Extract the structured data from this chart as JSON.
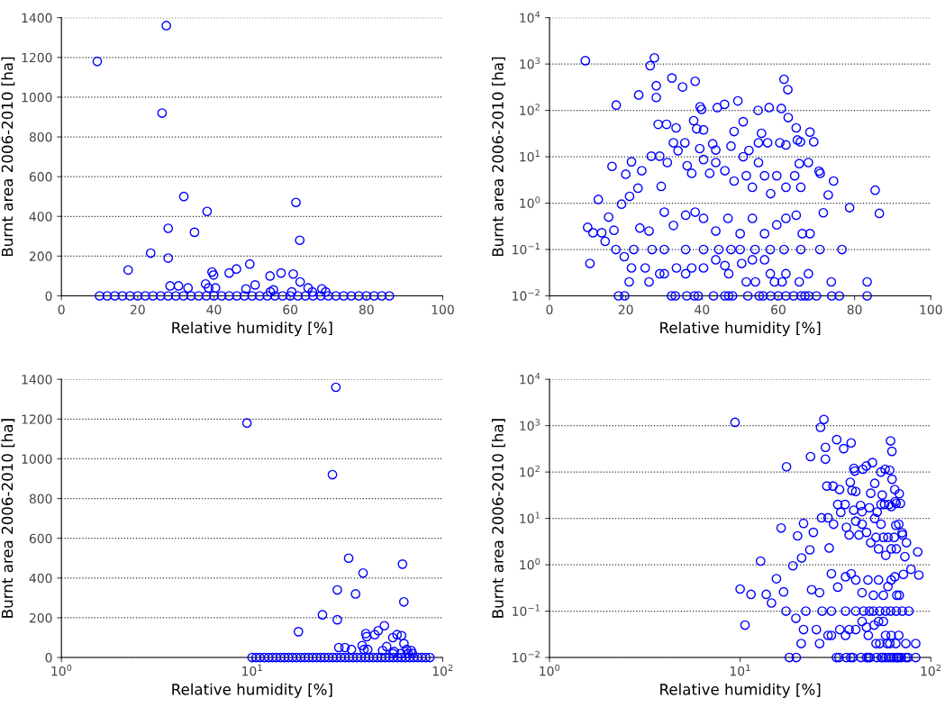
{
  "chart_data": [
    {
      "type": "scatter",
      "xlabel": "Relative humidity [%]",
      "ylabel": "Burnt area 2006-2010 [ha]",
      "marker": "circle",
      "grid": "y",
      "xlim": [
        0,
        100
      ],
      "xticks": [
        0,
        20,
        40,
        60,
        80,
        100
      ],
      "ylim": [
        0,
        1400
      ],
      "yticks": [
        0,
        200,
        400,
        600,
        800,
        1000,
        1200,
        1400
      ],
      "series": [
        {
          "color": "#0000ff",
          "x": [
            9.4,
            27.5,
            26.4,
            32.1,
            38.2,
            34.9,
            28,
            28,
            23.4,
            17.5,
            61.5,
            62.5,
            49.4,
            45.9,
            44,
            57.6,
            60.8,
            54.7,
            39.5,
            39.9,
            28.5,
            30.7,
            33.2,
            37.8,
            38.6,
            50.8,
            55.6,
            62.6,
            64.7,
            68.3,
            69.3,
            65.8,
            48.4,
            40.4,
            54.8,
            60.4,
            10,
            12,
            14,
            16,
            18,
            20,
            22,
            24,
            26,
            28,
            30,
            32,
            34,
            36,
            38,
            40,
            42,
            44,
            46,
            48,
            50,
            52,
            54,
            56,
            58,
            60,
            62,
            64,
            66,
            68,
            70,
            72,
            74,
            76,
            78,
            80,
            82,
            84,
            86
          ],
          "values": [
            1180,
            1360,
            920,
            500,
            425,
            320,
            340,
            190,
            215,
            130,
            470,
            280,
            160,
            135,
            115,
            115,
            110,
            100,
            120,
            105,
            50,
            50,
            40,
            60,
            40,
            55,
            30,
            70,
            40,
            35,
            20,
            20,
            35,
            40,
            20,
            20,
            0,
            0,
            0,
            0,
            0,
            0,
            0,
            0,
            0,
            0,
            0,
            0,
            0,
            0,
            0,
            0,
            0,
            0,
            0,
            0,
            0,
            0,
            0,
            0,
            0,
            0,
            0,
            0,
            0,
            0,
            0,
            0,
            0,
            0,
            0,
            0,
            0,
            0,
            0
          ]
        }
      ]
    },
    {
      "type": "scatter",
      "xlabel": "Relative humidity [%]",
      "ylabel": "Burnt area 2006-2010 [ha]",
      "marker": "circle",
      "grid": "y",
      "log": "y",
      "xlim": [
        0,
        100
      ],
      "xticks": [
        0,
        20,
        40,
        60,
        80,
        100
      ],
      "ylim": [
        0.01,
        10000
      ],
      "yticks": [
        {
          "value": 0.01,
          "label": "10$^{−2}$"
        },
        {
          "value": 0.1,
          "label": "10$^{−1}$"
        },
        {
          "value": 1,
          "label": "10$^{0}$"
        },
        {
          "value": 10,
          "label": "10$^{1}$"
        },
        {
          "value": 100,
          "label": "10$^{2}$"
        },
        {
          "value": 1000,
          "label": "10$^{3}$"
        },
        {
          "value": 10000,
          "label": "10$^{4}$"
        }
      ],
      "series": [
        {
          "color": "#0000ff",
          "x": [
            9.4,
            27.5,
            26.4,
            32.1,
            38.2,
            34.9,
            28,
            28,
            23.4,
            17.5,
            61.5,
            62.5,
            49.4,
            45.9,
            44,
            57.6,
            60.8,
            54.7,
            39.5,
            39.9,
            28.5,
            30.7,
            33.2,
            37.8,
            38.6,
            50.8,
            55.6,
            62.6,
            64.7,
            68.3,
            69.3,
            65.8,
            48.4,
            32.5,
            35.5,
            39.4,
            42.8,
            26.7,
            28.9,
            16.4,
            21.5,
            20,
            24.2,
            23.2,
            74.5,
            70.7,
            85.4,
            86.5,
            78.7,
            71.8,
            73.1,
            12.8,
            18.9,
            21,
            15.5,
            10,
            11.4,
            13.7,
            14.6,
            10.6,
            16.9,
            19.6,
            21.5,
            20.9,
            26.1,
            25.1,
            19.7,
            18.1,
            29.3,
            30.9,
            33.7,
            36.1,
            37.3,
            40.4,
            42,
            43.6,
            46,
            48.4,
            50.8,
            51.6,
            53.2,
            54.8,
            56.4,
            58,
            59.6,
            62,
            64.3,
            65.9,
            67.9,
            71,
            65.5,
            30.1,
            32.5,
            35.7,
            38.2,
            40.4,
            43.6,
            46.8,
            50,
            53.2,
            56.4,
            59.6,
            62,
            64.7,
            66.3,
            68.3,
            26.1,
            23.7,
            17.4,
            22.1,
            26.9,
            30.1,
            35.7,
            40.4,
            44.4,
            47.6,
            50,
            53.9,
            57.9,
            61.5,
            65.9,
            70.9,
            76.7,
            33.3,
            37.3,
            40.4,
            43.6,
            46,
            50.4,
            53.2,
            56.4,
            47,
            51.6,
            54,
            59,
            61,
            65.5,
            67.9,
            73.9,
            83.3,
            28.9,
            35.7,
            30.1,
            57.9,
            62,
            32,
            33,
            36,
            38,
            39,
            43,
            46,
            47,
            48,
            52,
            55,
            56,
            58,
            60,
            62,
            64,
            66,
            67,
            68,
            70,
            74,
            76,
            83.3,
            40.4,
            47.6,
            52.3,
            54.8,
            57.2,
            60.4,
            62,
            65,
            43.6
          ],
          "values": [
            1180,
            1360,
            920,
            500,
            425,
            320,
            340,
            190,
            215,
            130,
            470,
            280,
            160,
            135,
            115,
            115,
            110,
            100,
            120,
            105,
            50,
            50,
            42,
            60,
            40,
            57,
            32,
            70,
            42,
            34,
            21,
            21,
            35,
            20,
            20,
            15,
            19,
            10.3,
            10.3,
            6.2,
            7.8,
            4.2,
            5,
            2.1,
            3,
            4.9,
            1.9,
            0.6,
            0.8,
            0.62,
            1.5,
            1.2,
            0.95,
            1.4,
            0.5,
            0.3,
            0.23,
            0.23,
            0.15,
            0.05,
            0.26,
            0.07,
            0.04,
            0.02,
            0.02,
            0.04,
            0.01,
            0.01,
            2.3,
            7.5,
            13.5,
            6.4,
            4.4,
            8.7,
            4.4,
            7.5,
            5,
            3,
            10,
            3.9,
            2.2,
            7.5,
            3.9,
            1.6,
            3.9,
            2.2,
            3.9,
            2.2,
            7.5,
            4.4,
            7.1,
            0.64,
            0.33,
            0.55,
            0.64,
            0.47,
            0.25,
            0.47,
            0.22,
            0.47,
            0.22,
            0.34,
            0.47,
            0.55,
            0.22,
            0.22,
            0.25,
            0.29,
            0.1,
            0.1,
            0.1,
            0.1,
            0.1,
            0.1,
            0.1,
            0.1,
            0.1,
            0.1,
            0.1,
            0.1,
            0.1,
            0.1,
            0.1,
            0.04,
            0.04,
            0.04,
            0.06,
            0.045,
            0.05,
            0.06,
            0.06,
            0.03,
            0.02,
            0.02,
            0.02,
            0.02,
            0.02,
            0.03,
            0.02,
            0.02,
            0.03,
            0.03,
            0.03,
            0.03,
            0.03,
            0.01,
            0.01,
            0.01,
            0.01,
            0.01,
            0.01,
            0.01,
            0.01,
            0.01,
            0.01,
            0.01,
            0.01,
            0.01,
            0.01,
            0.01,
            0.01,
            0.01,
            0.01,
            0.01,
            0.01,
            0.01,
            0.01,
            0.01,
            38,
            17,
            13.7,
            20,
            20,
            20,
            18,
            23,
            14
          ]
        }
      ]
    },
    {
      "type": "scatter",
      "xlabel": "Relative humidity [%]",
      "ylabel": "Burnt area 2006-2010 [ha]",
      "marker": "circle",
      "grid": "y",
      "log": "x",
      "xlim": [
        1,
        100
      ],
      "xticks": [
        {
          "value": 1,
          "label": "10$^{0}$"
        },
        {
          "value": 10,
          "label": "10$^{1}$"
        },
        {
          "value": 100,
          "label": "10$^{2}$"
        }
      ],
      "ylim": [
        0,
        1400
      ],
      "yticks": [
        0,
        200,
        400,
        600,
        800,
        1000,
        1200,
        1400
      ],
      "series": [
        {
          "color": "#0000ff",
          "x": [
            9.4,
            27.5,
            26.4,
            32.1,
            38.2,
            34.9,
            28,
            28,
            23.4,
            17.5,
            61.5,
            62.5,
            49.4,
            45.9,
            44,
            57.6,
            60.8,
            54.7,
            39.5,
            39.9,
            28.5,
            30.7,
            33.2,
            37.8,
            38.6,
            50.8,
            55.6,
            62.6,
            64.7,
            68.3,
            69.3,
            65.8,
            48.4,
            40.4,
            54.8,
            60.4,
            10,
            10.5,
            11,
            11.6,
            12.2,
            12.8,
            13.4,
            14.1,
            14.8,
            15.5,
            16.3,
            17.1,
            18,
            18.9,
            19.8,
            20.8,
            21.8,
            22.9,
            24,
            25.2,
            26.5,
            27.8,
            29.2,
            30.7,
            32.2,
            33.8,
            35.5,
            37.3,
            39.2,
            41.1,
            43.2,
            45.4,
            47.6,
            50,
            52.5,
            55.1,
            57.9,
            60.8,
            63.8,
            67,
            70.4,
            73.9,
            77.6,
            81.5,
            85.6
          ],
          "values": [
            1180,
            1360,
            920,
            500,
            425,
            320,
            340,
            190,
            215,
            130,
            470,
            280,
            160,
            135,
            115,
            115,
            110,
            100,
            120,
            105,
            50,
            50,
            40,
            60,
            40,
            55,
            30,
            70,
            40,
            35,
            20,
            20,
            35,
            40,
            20,
            20,
            0,
            0,
            0,
            0,
            0,
            0,
            0,
            0,
            0,
            0,
            0,
            0,
            0,
            0,
            0,
            0,
            0,
            0,
            0,
            0,
            0,
            0,
            0,
            0,
            0,
            0,
            0,
            0,
            0,
            0,
            0,
            0,
            0,
            0,
            0,
            0,
            0,
            0,
            0,
            0,
            0,
            0,
            0,
            0,
            0
          ]
        }
      ]
    },
    {
      "type": "scatter",
      "xlabel": "Relative humidity [%]",
      "ylabel": "Burnt area 2006-2010 [ha]",
      "marker": "circle",
      "grid": "y",
      "log": "xy",
      "xlim": [
        1,
        100
      ],
      "xticks": [
        {
          "value": 1,
          "label": "10$^{0}$"
        },
        {
          "value": 10,
          "label": "10$^{1}$"
        },
        {
          "value": 100,
          "label": "10$^{2}$"
        }
      ],
      "ylim": [
        0.01,
        10000
      ],
      "yticks": [
        {
          "value": 0.01,
          "label": "10$^{−2}$"
        },
        {
          "value": 0.1,
          "label": "10$^{−1}$"
        },
        {
          "value": 1,
          "label": "10$^{0}$"
        },
        {
          "value": 10,
          "label": "10$^{1}$"
        },
        {
          "value": 100,
          "label": "10$^{2}$"
        },
        {
          "value": 1000,
          "label": "10$^{3}$"
        },
        {
          "value": 10000,
          "label": "10$^{4}$"
        }
      ],
      "series": [
        {
          "color": "#0000ff",
          "x": [
            9.4,
            27.5,
            26.4,
            32.1,
            38.2,
            34.9,
            28,
            28,
            23.4,
            17.5,
            61.5,
            62.5,
            49.4,
            45.9,
            44,
            57.6,
            60.8,
            54.7,
            39.5,
            39.9,
            28.5,
            30.7,
            33.2,
            37.8,
            38.6,
            50.8,
            55.6,
            62.6,
            64.7,
            68.3,
            69.3,
            65.8,
            48.4,
            32.5,
            35.5,
            39.4,
            42.8,
            26.7,
            28.9,
            16.4,
            21.5,
            20,
            24.2,
            23.2,
            74.5,
            70.7,
            85.4,
            86.5,
            78.7,
            71.8,
            73.1,
            12.8,
            18.9,
            21,
            15.5,
            10,
            11.4,
            13.7,
            14.6,
            10.6,
            16.9,
            19.6,
            21.5,
            20.9,
            26.1,
            25.1,
            19.7,
            18.1,
            29.3,
            30.9,
            33.7,
            36.1,
            37.3,
            40.4,
            42,
            43.6,
            46,
            48.4,
            50.8,
            51.6,
            53.2,
            54.8,
            56.4,
            58,
            59.6,
            62,
            64.3,
            65.9,
            67.9,
            71,
            65.5,
            30.1,
            32.5,
            35.7,
            38.2,
            40.4,
            43.6,
            46.8,
            50,
            53.2,
            56.4,
            59.6,
            62,
            64.7,
            66.3,
            68.3,
            26.1,
            23.7,
            17.4,
            22.1,
            26.9,
            30.1,
            35.7,
            40.4,
            44.4,
            47.6,
            50,
            53.9,
            57.9,
            61.5,
            65.9,
            70.9,
            76.7,
            33.3,
            37.3,
            40.4,
            43.6,
            46,
            50.4,
            53.2,
            56.4,
            47,
            51.6,
            54,
            59,
            61,
            65.5,
            67.9,
            73.9,
            83.3,
            28.9,
            35.7,
            30.1,
            57.9,
            62,
            32,
            33,
            36,
            38,
            39,
            43,
            46,
            47,
            48,
            52,
            55,
            56,
            58,
            60,
            62,
            64,
            66,
            67,
            68,
            70,
            74,
            76,
            83.3,
            40.4,
            47.6,
            52.3,
            54.8,
            57.2,
            60.4,
            62,
            65,
            43.6
          ],
          "values": [
            1180,
            1360,
            920,
            500,
            425,
            320,
            340,
            190,
            215,
            130,
            470,
            280,
            160,
            135,
            115,
            115,
            110,
            100,
            120,
            105,
            50,
            50,
            42,
            60,
            40,
            57,
            32,
            70,
            42,
            34,
            21,
            21,
            35,
            20,
            20,
            15,
            19,
            10.3,
            10.3,
            6.2,
            7.8,
            4.2,
            5,
            2.1,
            3,
            4.9,
            1.9,
            0.6,
            0.8,
            0.62,
            1.5,
            1.2,
            0.95,
            1.4,
            0.5,
            0.3,
            0.23,
            0.23,
            0.15,
            0.05,
            0.26,
            0.07,
            0.04,
            0.02,
            0.02,
            0.04,
            0.01,
            0.01,
            2.3,
            7.5,
            13.5,
            6.4,
            4.4,
            8.7,
            4.4,
            7.5,
            5,
            3,
            10,
            3.9,
            2.2,
            7.5,
            3.9,
            1.6,
            3.9,
            2.2,
            3.9,
            2.2,
            7.5,
            4.4,
            7.1,
            0.64,
            0.33,
            0.55,
            0.64,
            0.47,
            0.25,
            0.47,
            0.22,
            0.47,
            0.22,
            0.34,
            0.47,
            0.55,
            0.22,
            0.22,
            0.25,
            0.29,
            0.1,
            0.1,
            0.1,
            0.1,
            0.1,
            0.1,
            0.1,
            0.1,
            0.1,
            0.1,
            0.1,
            0.1,
            0.1,
            0.1,
            0.1,
            0.04,
            0.04,
            0.04,
            0.06,
            0.045,
            0.05,
            0.06,
            0.06,
            0.03,
            0.02,
            0.02,
            0.02,
            0.02,
            0.02,
            0.03,
            0.02,
            0.02,
            0.03,
            0.03,
            0.03,
            0.03,
            0.03,
            0.01,
            0.01,
            0.01,
            0.01,
            0.01,
            0.01,
            0.01,
            0.01,
            0.01,
            0.01,
            0.01,
            0.01,
            0.01,
            0.01,
            0.01,
            0.01,
            0.01,
            0.01,
            0.01,
            0.01,
            0.01,
            0.01,
            0.01,
            38,
            17,
            13.7,
            20,
            20,
            20,
            18,
            23,
            14
          ]
        }
      ]
    }
  ]
}
